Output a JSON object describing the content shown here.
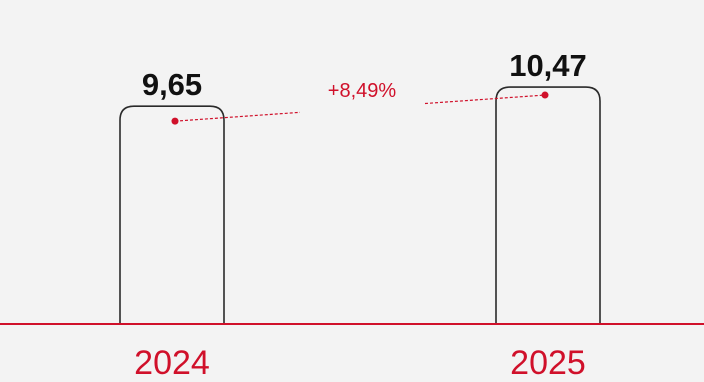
{
  "chart_data": {
    "type": "bar",
    "categories": [
      "2024",
      "2025"
    ],
    "values": [
      9.65,
      10.47
    ],
    "value_labels": [
      "9,65",
      "10,47"
    ],
    "change_label": "+8,49%",
    "grid": false,
    "legend": "none"
  },
  "colors": {
    "background": "#f3f3f3",
    "accent": "#d0102a",
    "bar_outline": "#2a2a2a",
    "value_text": "#111111"
  }
}
